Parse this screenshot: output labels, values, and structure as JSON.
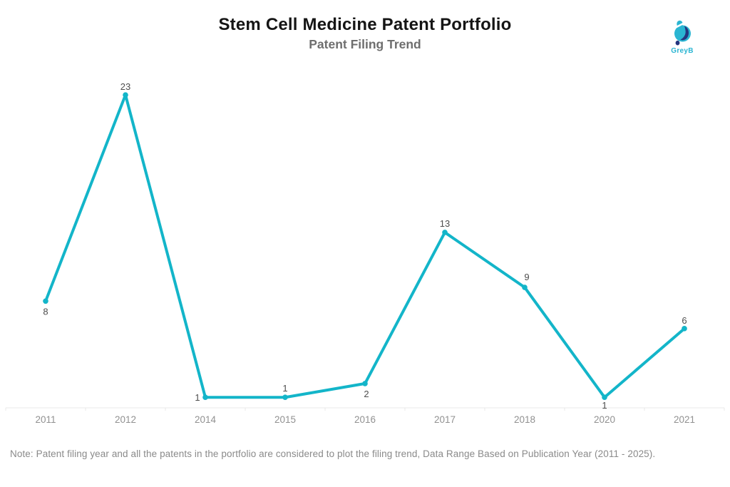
{
  "header": {
    "title": "Stem Cell Medicine Patent Portfolio",
    "subtitle": "Patent Filing Trend"
  },
  "logo": {
    "text": "GreyB",
    "cyan": "#2ab5d2",
    "navy": "#24357f"
  },
  "chart_data": {
    "type": "line",
    "title": "Stem Cell Medicine Patent Portfolio",
    "subtitle": "Patent Filing Trend",
    "categories": [
      "2011",
      "2012",
      "2014",
      "2015",
      "2016",
      "2017",
      "2018",
      "2020",
      "2021"
    ],
    "values": [
      8,
      23,
      1,
      1,
      2,
      13,
      9,
      1,
      6
    ],
    "data_labels_shown": true,
    "line_color": "#13b5c9",
    "marker_color": "#13b5c9",
    "value_label_color": "#4d4d4d",
    "axis_label_color": "#919191",
    "axis_line_color": "#e8e8e8",
    "ylim": [
      0,
      24
    ],
    "grid": false,
    "legend": "none",
    "xlabel": "",
    "ylabel": ""
  },
  "note": "Note: Patent filing year and all the patents in the portfolio are considered to plot the filing trend, Data Range Based on Publication Year (2011 - 2025)."
}
